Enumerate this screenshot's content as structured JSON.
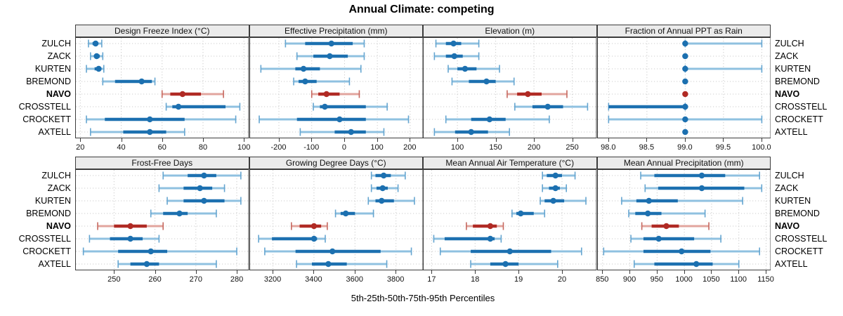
{
  "title": "Annual Climate: competing",
  "caption": "5th-25th-50th-75th-95th Percentiles",
  "locations": [
    "ZULCH",
    "ZACK",
    "KURTEN",
    "BREMOND",
    "NAVO",
    "CROSSTELL",
    "CROCKETT",
    "AXTELL"
  ],
  "highlighted_location": "NAVO",
  "colors": {
    "blue_dark": "#1c70b0",
    "blue_light": "#8fc1e0",
    "blue_cap": "#65a5d0",
    "red_dark": "#b02a24",
    "red_light": "#e2a59e",
    "red_cap": "#c6685f",
    "grid": "#cccccc",
    "panel_border": "#3c3c3c",
    "header_bg": "#ebebeb"
  },
  "chart_data": {
    "type": "dotplot-interval-trellis",
    "percentiles": [
      5,
      25,
      50,
      75,
      95
    ],
    "legend_note": "thin light line = 5th-95th, thick line = 25th-75th, dot = 50th",
    "grid": "dotted",
    "panels": [
      {
        "title": "Design Freeze Index (°C)",
        "grid_row": 0,
        "range": [
          17.5,
          102.5
        ],
        "ticks": [
          20,
          40,
          60,
          80,
          100
        ],
        "tick_labels": [
          "20",
          "40",
          "60",
          "80",
          "100"
        ],
        "series": [
          {
            "location": "ZULCH",
            "values": [
              24,
              26,
              27.5,
              28.5,
              30.5
            ]
          },
          {
            "location": "ZACK",
            "values": [
              25,
              27,
              28,
              29.5,
              31
            ]
          },
          {
            "location": "KURTEN",
            "values": [
              23,
              27,
              29,
              30,
              31.5
            ]
          },
          {
            "location": "BREMOND",
            "values": [
              31,
              37,
              50,
              55,
              56.5
            ]
          },
          {
            "location": "NAVO",
            "values": [
              60,
              64,
              70,
              79,
              90
            ]
          },
          {
            "location": "CROSSTELL",
            "values": [
              62,
              65,
              68,
              91,
              98
            ]
          },
          {
            "location": "CROCKETT",
            "values": [
              23,
              32,
              54,
              71,
              96
            ]
          },
          {
            "location": "AXTELL",
            "values": [
              25,
              41,
              54,
              62,
              71
            ]
          }
        ]
      },
      {
        "title": "Effective Precipitation (mm)",
        "grid_row": 0,
        "range": [
          -290,
          240
        ],
        "ticks": [
          -200,
          -100,
          0,
          100,
          200
        ],
        "tick_labels": [
          "-200",
          "-100",
          "0",
          "100",
          "200"
        ],
        "series": [
          {
            "location": "ZULCH",
            "values": [
              -180,
              -120,
              -40,
              25,
              60
            ]
          },
          {
            "location": "ZACK",
            "values": [
              -145,
              -95,
              -45,
              10,
              60
            ]
          },
          {
            "location": "KURTEN",
            "values": [
              -255,
              -150,
              -125,
              -75,
              50
            ]
          },
          {
            "location": "BREMOND",
            "values": [
              -155,
              -140,
              -120,
              -85,
              15
            ]
          },
          {
            "location": "NAVO",
            "values": [
              -100,
              -80,
              -55,
              -15,
              45
            ]
          },
          {
            "location": "CROSSTELL",
            "values": [
              -95,
              -75,
              -60,
              65,
              130
            ]
          },
          {
            "location": "CROCKETT",
            "values": [
              -260,
              -145,
              -15,
              65,
              195
            ]
          },
          {
            "location": "AXTELL",
            "values": [
              -135,
              -30,
              20,
              65,
              120
            ]
          }
        ]
      },
      {
        "title": "Elevation (m)",
        "grid_row": 0,
        "range": [
          55,
          282
        ],
        "ticks": [
          100,
          150,
          200,
          250
        ],
        "tick_labels": [
          "100",
          "150",
          "200",
          "250"
        ],
        "series": [
          {
            "location": "ZULCH",
            "values": [
              72,
              85,
              95,
              105,
              128
            ]
          },
          {
            "location": "ZACK",
            "values": [
              70,
              85,
              96,
              107,
              128
            ]
          },
          {
            "location": "KURTEN",
            "values": [
              88,
              100,
              110,
              125,
              155
            ]
          },
          {
            "location": "BREMOND",
            "values": [
              93,
              115,
              138,
              150,
              174
            ]
          },
          {
            "location": "NAVO",
            "values": [
              165,
              178,
              192,
              210,
              243
            ]
          },
          {
            "location": "CROSSTELL",
            "values": [
              175,
              198,
              218,
              238,
              270
            ]
          },
          {
            "location": "CROCKETT",
            "values": [
              85,
              118,
              142,
              163,
              220
            ]
          },
          {
            "location": "AXTELL",
            "values": [
              70,
              97,
              118,
              140,
              168
            ]
          }
        ]
      },
      {
        "title": "Fraction of Annual PPT as Rain",
        "grid_row": 0,
        "range": [
          97.85,
          100.12
        ],
        "ticks": [
          98.0,
          98.5,
          99.0,
          99.5,
          100.0
        ],
        "tick_labels": [
          "98.0",
          "98.5",
          "99.0",
          "99.5",
          "100.0"
        ],
        "series": [
          {
            "location": "ZULCH",
            "values": [
              99,
              99,
              99,
              99,
              100
            ]
          },
          {
            "location": "ZACK",
            "values": [
              99,
              99,
              99,
              99,
              99
            ]
          },
          {
            "location": "KURTEN",
            "values": [
              99,
              99,
              99,
              99,
              100
            ]
          },
          {
            "location": "BREMOND",
            "values": [
              99,
              99,
              99,
              99,
              99
            ]
          },
          {
            "location": "NAVO",
            "values": [
              99,
              99,
              99,
              99,
              99
            ]
          },
          {
            "location": "CROSSTELL",
            "values": [
              98,
              98,
              99,
              99,
              99
            ]
          },
          {
            "location": "CROCKETT",
            "values": [
              98,
              99,
              99,
              99,
              100
            ]
          },
          {
            "location": "AXTELL",
            "values": [
              99,
              99,
              99,
              99,
              99
            ]
          }
        ]
      },
      {
        "title": "Frost-Free Days",
        "grid_row": 1,
        "range": [
          240.5,
          283
        ],
        "ticks": [
          250,
          260,
          270,
          280
        ],
        "tick_labels": [
          "250",
          "260",
          "270",
          "280"
        ],
        "series": [
          {
            "location": "ZULCH",
            "values": [
              262,
              268,
              272,
              275,
              281
            ]
          },
          {
            "location": "ZACK",
            "values": [
              261,
              267,
              271,
              274,
              277
            ]
          },
          {
            "location": "KURTEN",
            "values": [
              263,
              267,
              272,
              277,
              281
            ]
          },
          {
            "location": "BREMOND",
            "values": [
              259,
              262,
              266,
              268,
              275
            ]
          },
          {
            "location": "NAVO",
            "values": [
              246,
              250,
              254,
              258,
              262
            ]
          },
          {
            "location": "CROSSTELL",
            "values": [
              244,
              249,
              254,
              257,
              261
            ]
          },
          {
            "location": "CROCKETT",
            "values": [
              242.5,
              251,
              259,
              263,
              280
            ]
          },
          {
            "location": "AXTELL",
            "values": [
              251,
              254,
              258,
              261,
              275
            ]
          }
        ]
      },
      {
        "title": "Growing Degree Days (°C)",
        "grid_row": 1,
        "range": [
          3085,
          3933
        ],
        "ticks": [
          3200,
          3400,
          3600,
          3800
        ],
        "tick_labels": [
          "3200",
          "3400",
          "3600",
          "3800"
        ],
        "series": [
          {
            "location": "ZULCH",
            "values": [
              3680,
              3700,
              3740,
              3775,
              3845
            ]
          },
          {
            "location": "ZACK",
            "values": [
              3680,
              3705,
              3735,
              3760,
              3810
            ]
          },
          {
            "location": "KURTEN",
            "values": [
              3665,
              3700,
              3730,
              3790,
              3890
            ]
          },
          {
            "location": "BREMOND",
            "values": [
              3505,
              3530,
              3555,
              3600,
              3690
            ]
          },
          {
            "location": "NAVO",
            "values": [
              3290,
              3330,
              3400,
              3435,
              3465
            ]
          },
          {
            "location": "CROSSTELL",
            "values": [
              3130,
              3195,
              3400,
              3415,
              3455
            ]
          },
          {
            "location": "CROCKETT",
            "values": [
              3160,
              3310,
              3490,
              3725,
              3875
            ]
          },
          {
            "location": "AXTELL",
            "values": [
              3315,
              3390,
              3470,
              3560,
              3755
            ]
          }
        ]
      },
      {
        "title": "Mean Annual Air Temperature (°C)",
        "grid_row": 1,
        "range": [
          16.8,
          20.8
        ],
        "ticks": [
          17,
          18,
          19,
          20
        ],
        "tick_labels": [
          "17",
          "18",
          "19",
          "20"
        ],
        "series": [
          {
            "location": "ZULCH",
            "values": [
              19.55,
              19.65,
              19.85,
              20.0,
              20.3
            ]
          },
          {
            "location": "ZACK",
            "values": [
              19.55,
              19.7,
              19.85,
              19.95,
              20.1
            ]
          },
          {
            "location": "KURTEN",
            "values": [
              19.5,
              19.6,
              19.8,
              20.05,
              20.55
            ]
          },
          {
            "location": "BREMOND",
            "values": [
              18.85,
              18.95,
              19.05,
              19.35,
              19.6
            ]
          },
          {
            "location": "NAVO",
            "values": [
              17.8,
              17.95,
              18.35,
              18.5,
              18.65
            ]
          },
          {
            "location": "CROSSTELL",
            "values": [
              17.05,
              17.3,
              18.35,
              18.45,
              18.6
            ]
          },
          {
            "location": "CROCKETT",
            "values": [
              17.2,
              17.9,
              18.8,
              19.75,
              20.45
            ]
          },
          {
            "location": "AXTELL",
            "values": [
              17.9,
              18.35,
              18.7,
              19.0,
              19.9
            ]
          }
        ]
      },
      {
        "title": "Mean Annual Precipitation (mm)",
        "grid_row": 1,
        "range": [
          840,
          1159
        ],
        "ticks": [
          850,
          900,
          950,
          1000,
          1050,
          1100,
          1150
        ],
        "tick_labels": [
          "850",
          "900",
          "950",
          "1000",
          "1050",
          "1100",
          "1150"
        ],
        "series": [
          {
            "location": "ZULCH",
            "values": [
              920,
              945,
              1032,
              1075,
              1138
            ]
          },
          {
            "location": "ZACK",
            "values": [
              928,
              952,
              1032,
              1110,
              1142
            ]
          },
          {
            "location": "KURTEN",
            "values": [
              885,
              912,
              935,
              988,
              1107
            ]
          },
          {
            "location": "BREMOND",
            "values": [
              898,
              910,
              933,
              958,
              1038
            ]
          },
          {
            "location": "NAVO",
            "values": [
              922,
              940,
              967,
              990,
              1045
            ]
          },
          {
            "location": "CROSSTELL",
            "values": [
              902,
              925,
              953,
              1018,
              1067
            ]
          },
          {
            "location": "CROCKETT",
            "values": [
              852,
              925,
              995,
              1048,
              1138
            ]
          },
          {
            "location": "AXTELL",
            "values": [
              908,
              945,
              1022,
              1052,
              1100
            ]
          }
        ]
      }
    ]
  }
}
